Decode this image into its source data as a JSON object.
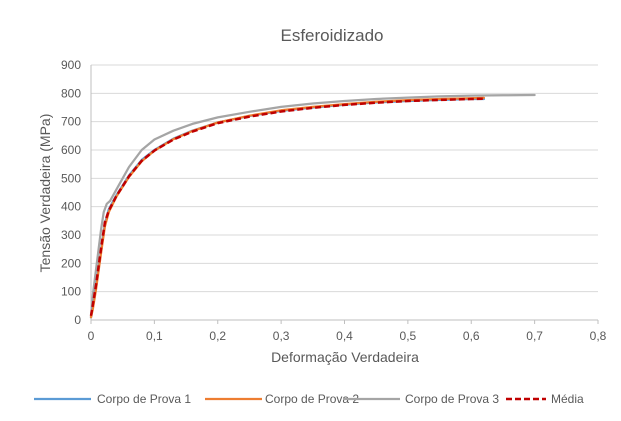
{
  "chart_data": {
    "type": "line",
    "title": "Esferoidizado",
    "xlabel": "Deformação Verdadeira",
    "ylabel": "Tensão Verdadeira (MPa)",
    "xlim": [
      0,
      0.8
    ],
    "ylim": [
      0,
      900
    ],
    "x_ticks": [
      0,
      0.1,
      0.2,
      0.3,
      0.4,
      0.5,
      0.6,
      0.7,
      0.8
    ],
    "x_tick_labels": [
      "0",
      "0,1",
      "0,2",
      "0,3",
      "0,4",
      "0,5",
      "0,6",
      "0,7",
      "0,8"
    ],
    "y_ticks": [
      0,
      100,
      200,
      300,
      400,
      500,
      600,
      700,
      800,
      900
    ],
    "y_tick_labels": [
      "0",
      "100",
      "200",
      "300",
      "400",
      "500",
      "600",
      "700",
      "800",
      "900"
    ],
    "grid": "horizontal",
    "legend_position": "bottom",
    "series": [
      {
        "name": "Corpo de Prova 1",
        "color": "#5b9bd5",
        "dash": "solid",
        "x": [
          0,
          0.003,
          0.008,
          0.013,
          0.018,
          0.022,
          0.028,
          0.04,
          0.06,
          0.08,
          0.1,
          0.13,
          0.16,
          0.2,
          0.25,
          0.3,
          0.35,
          0.4,
          0.45,
          0.5,
          0.55,
          0.6,
          0.62
        ],
        "y": [
          10,
          50,
          120,
          200,
          280,
          340,
          390,
          440,
          510,
          565,
          600,
          640,
          668,
          697,
          720,
          738,
          750,
          760,
          768,
          773,
          777,
          780,
          780
        ]
      },
      {
        "name": "Corpo de Prova 2",
        "color": "#ed7d31",
        "dash": "solid",
        "x": [
          0,
          0.003,
          0.008,
          0.013,
          0.018,
          0.022,
          0.028,
          0.04,
          0.06,
          0.08,
          0.1,
          0.13,
          0.16,
          0.2,
          0.25,
          0.3,
          0.35,
          0.4,
          0.45,
          0.5,
          0.55,
          0.6,
          0.62
        ],
        "y": [
          10,
          40,
          110,
          190,
          270,
          330,
          380,
          435,
          505,
          560,
          598,
          638,
          667,
          697,
          721,
          740,
          752,
          762,
          770,
          776,
          780,
          783,
          784
        ]
      },
      {
        "name": "Corpo de Prova 3",
        "color": "#a5a5a5",
        "dash": "solid",
        "x": [
          0,
          0.003,
          0.008,
          0.012,
          0.016,
          0.02,
          0.025,
          0.03,
          0.04,
          0.06,
          0.08,
          0.1,
          0.13,
          0.16,
          0.2,
          0.25,
          0.3,
          0.35,
          0.4,
          0.45,
          0.5,
          0.55,
          0.6,
          0.65,
          0.7
        ],
        "y": [
          10,
          90,
          180,
          250,
          320,
          380,
          410,
          420,
          460,
          540,
          600,
          637,
          668,
          692,
          715,
          735,
          752,
          764,
          773,
          780,
          785,
          789,
          792,
          793,
          794
        ]
      },
      {
        "name": "Média",
        "color": "#c00000",
        "dash": "dashed",
        "x": [
          0,
          0.003,
          0.008,
          0.013,
          0.018,
          0.022,
          0.028,
          0.04,
          0.06,
          0.08,
          0.1,
          0.13,
          0.16,
          0.2,
          0.25,
          0.3,
          0.35,
          0.4,
          0.45,
          0.5,
          0.55,
          0.6,
          0.62
        ],
        "y": [
          15,
          55,
          125,
          205,
          285,
          345,
          385,
          437,
          507,
          562,
          598,
          637,
          665,
          695,
          718,
          736,
          749,
          759,
          767,
          773,
          777,
          780,
          781
        ]
      }
    ]
  }
}
